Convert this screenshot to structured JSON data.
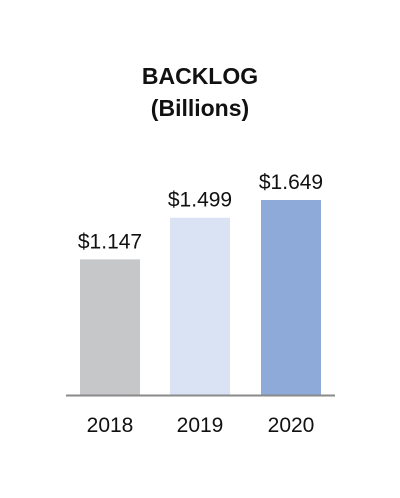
{
  "chart_data": {
    "type": "bar",
    "title_lines": [
      "BACKLOG",
      "(Billions)"
    ],
    "categories": [
      "2018",
      "2019",
      "2020"
    ],
    "values": [
      1.147,
      1.499,
      1.649
    ],
    "value_labels": [
      "$1.147",
      "$1.499",
      "$1.649"
    ],
    "colors": [
      "#c6c7c9",
      "#d9e3f3",
      "#8eaad9"
    ],
    "ylim": [
      0,
      1.649
    ],
    "grid": false,
    "legend": "none",
    "axis_color": "#8a8a8a"
  }
}
